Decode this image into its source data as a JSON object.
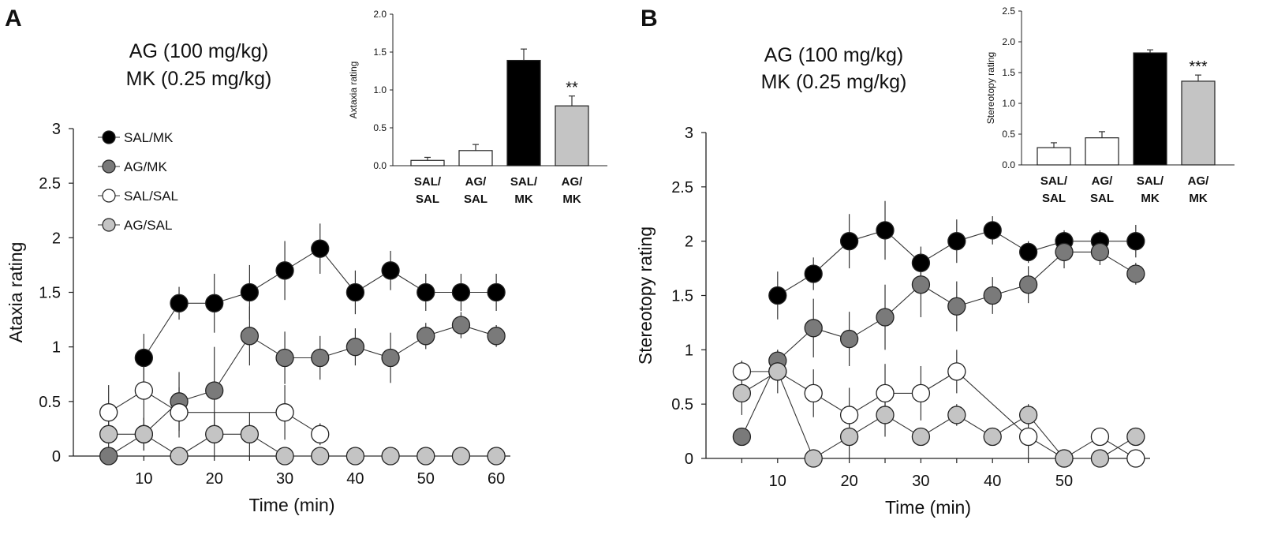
{
  "figure": {
    "colors": {
      "black": "#000000",
      "dark_gray": "#7a7a7a",
      "white": "#ffffff",
      "light_gray": "#c4c4c4"
    }
  },
  "chart_data": [
    {
      "panel": "A",
      "type": "line",
      "conditions": [
        "AG (100 mg/kg)",
        "MK (0.25 mg/kg)"
      ],
      "xlabel": "Time (min)",
      "ylabel": "Ataxia rating",
      "xlim": [
        0,
        62
      ],
      "ylim": [
        0,
        3
      ],
      "xticks": [
        10,
        20,
        30,
        40,
        50,
        60
      ],
      "yticks": [
        "0",
        "0.5",
        "1",
        "1.5",
        "2",
        "2.5",
        "3"
      ],
      "legend": [
        "SAL/MK",
        "AG/MK",
        "SAL/SAL",
        "AG/SAL"
      ],
      "series": [
        {
          "name": "SAL/MK",
          "color": "#000000",
          "x": [
            10,
            15,
            20,
            25,
            30,
            35,
            40,
            45,
            50,
            55,
            60
          ],
          "values": [
            0.9,
            1.4,
            1.4,
            1.5,
            1.7,
            1.9,
            1.5,
            1.7,
            1.5,
            1.5,
            1.5
          ],
          "errors": [
            0.22,
            0.15,
            0.27,
            0.25,
            0.27,
            0.23,
            0.2,
            0.18,
            0.17,
            0.17,
            0.17
          ]
        },
        {
          "name": "AG/MK",
          "color": "#7a7a7a",
          "x": [
            5,
            10,
            15,
            20,
            25,
            30,
            35,
            40,
            45,
            50,
            55,
            60
          ],
          "values": [
            0,
            0.2,
            0.5,
            0.6,
            1.1,
            0.9,
            0.9,
            1.0,
            0.9,
            1.1,
            1.2,
            1.1
          ],
          "errors": [
            0,
            0.15,
            0.27,
            0.4,
            0.27,
            0.24,
            0.2,
            0.17,
            0.23,
            0.12,
            0.12,
            0.1
          ]
        },
        {
          "name": "SAL/SAL",
          "color": "#ffffff",
          "x": [
            5,
            10,
            15,
            30,
            35
          ],
          "values": [
            0.4,
            0.6,
            0.4,
            0.4,
            0.2
          ],
          "errors": [
            0.25,
            0.27,
            0.23,
            0.25,
            0.1
          ]
        },
        {
          "name": "AG/SAL",
          "color": "#c4c4c4",
          "x": [
            5,
            10,
            15,
            20,
            25,
            30,
            35,
            40,
            45,
            50,
            55,
            60
          ],
          "values": [
            0.2,
            0.2,
            0,
            0.2,
            0.2,
            0,
            0,
            0,
            0,
            0,
            0,
            0
          ],
          "errors": [
            0.13,
            0.15,
            0,
            0.2,
            0.2,
            0,
            0,
            0,
            0,
            0,
            0,
            0
          ]
        }
      ],
      "inset": {
        "type": "bar",
        "ylabel": "Axtaxia rating",
        "ylim": [
          0,
          2.0
        ],
        "yticks": [
          "0.0",
          "0.5",
          "1.0",
          "1.5",
          "2.0"
        ],
        "categories": [
          [
            "SAL/",
            "SAL"
          ],
          [
            "AG/",
            "SAL"
          ],
          [
            "SAL/",
            "MK"
          ],
          [
            "AG/",
            "MK"
          ]
        ],
        "values": [
          0.07,
          0.2,
          1.39,
          0.79
        ],
        "errors": [
          0.04,
          0.08,
          0.15,
          0.13
        ],
        "colors": [
          "#ffffff",
          "#ffffff",
          "#000000",
          "#c4c4c4"
        ],
        "annotations": [
          "",
          "",
          "",
          "**"
        ]
      }
    },
    {
      "panel": "B",
      "type": "line",
      "conditions": [
        "AG (100 mg/kg)",
        "MK (0.25 mg/kg)"
      ],
      "xlabel": "Time (min)",
      "ylabel": "Stereotopy rating",
      "xlim": [
        0,
        62
      ],
      "ylim": [
        0,
        3
      ],
      "xticks": [
        10,
        20,
        30,
        40,
        50
      ],
      "yticks": [
        "0",
        "0.5",
        "1",
        "1.5",
        "2",
        "2.5",
        "3"
      ],
      "series": [
        {
          "name": "SAL/MK",
          "color": "#000000",
          "x": [
            10,
            15,
            20,
            25,
            30,
            35,
            40,
            45,
            50,
            55,
            60
          ],
          "values": [
            1.5,
            1.7,
            2.0,
            2.1,
            1.8,
            2.0,
            2.1,
            1.9,
            2.0,
            2.0,
            2.0
          ],
          "errors": [
            0.22,
            0.15,
            0.25,
            0.27,
            0.15,
            0.2,
            0.13,
            0.1,
            0.1,
            0.1,
            0.15
          ]
        },
        {
          "name": "AG/MK",
          "color": "#7a7a7a",
          "x": [
            5,
            10,
            15,
            20,
            25,
            30,
            35,
            40,
            45,
            50,
            55,
            60
          ],
          "values": [
            0.2,
            0.9,
            1.2,
            1.1,
            1.3,
            1.6,
            1.4,
            1.5,
            1.6,
            1.9,
            1.9,
            1.7
          ],
          "errors": [
            0,
            0.1,
            0.27,
            0.25,
            0.3,
            0.3,
            0.23,
            0.17,
            0.17,
            0.15,
            0.12,
            0.1
          ]
        },
        {
          "name": "SAL/SAL",
          "color": "#ffffff",
          "x": [
            5,
            10,
            15,
            20,
            25,
            30,
            35,
            45,
            50,
            55,
            60
          ],
          "values": [
            0.8,
            0.8,
            0.6,
            0.4,
            0.6,
            0.6,
            0.8,
            0.2,
            0,
            0.2,
            0
          ],
          "errors": [
            0.1,
            0.1,
            0.22,
            0.25,
            0.27,
            0.25,
            0.2,
            0.2,
            0,
            0,
            0
          ]
        },
        {
          "name": "AG/SAL",
          "color": "#c4c4c4",
          "x": [
            5,
            10,
            15,
            20,
            25,
            30,
            35,
            40,
            45,
            50,
            55,
            60
          ],
          "values": [
            0.6,
            0.8,
            0,
            0.2,
            0.4,
            0.2,
            0.4,
            0.2,
            0.4,
            0,
            0,
            0.2
          ],
          "errors": [
            0.2,
            0.2,
            0,
            0.2,
            0.2,
            0,
            0.1,
            0,
            0.1,
            0,
            0,
            0
          ]
        }
      ],
      "inset": {
        "type": "bar",
        "ylabel": "Stereotopy rating",
        "ylim": [
          0,
          2.5
        ],
        "yticks": [
          "0.0",
          "0.5",
          "1.0",
          "1.5",
          "2.0",
          "2.5"
        ],
        "categories": [
          [
            "SAL/",
            "SAL"
          ],
          [
            "AG/",
            "SAL"
          ],
          [
            "SAL/",
            "MK"
          ],
          [
            "AG/",
            "MK"
          ]
        ],
        "values": [
          0.28,
          0.44,
          1.82,
          1.36
        ],
        "errors": [
          0.08,
          0.1,
          0.05,
          0.1
        ],
        "colors": [
          "#ffffff",
          "#ffffff",
          "#000000",
          "#c4c4c4"
        ],
        "annotations": [
          "",
          "",
          "",
          "***"
        ]
      }
    }
  ]
}
